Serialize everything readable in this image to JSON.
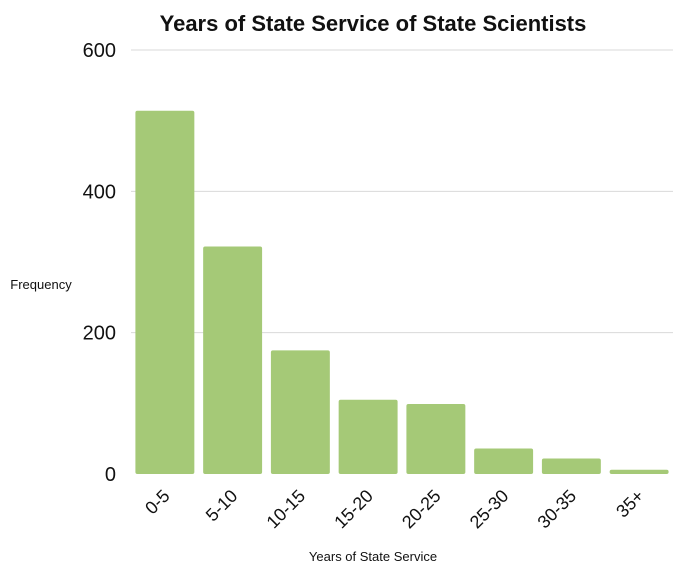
{
  "chart_data": {
    "type": "bar",
    "title": "Years of State Service of State Scientists",
    "xlabel": "Years of State Service",
    "ylabel": "Frequency",
    "categories": [
      "0-5",
      "5-10",
      "10-15",
      "15-20",
      "20-25",
      "25-30",
      "30-35",
      "35+"
    ],
    "values": [
      514,
      322,
      175,
      105,
      99,
      36,
      22,
      6
    ],
    "ylim": [
      0,
      600
    ],
    "yticks": [
      0,
      200,
      400,
      600
    ],
    "grid": true,
    "legend": "none",
    "bar_color": "#a5c977",
    "grid_color": "#d9d9d9"
  }
}
